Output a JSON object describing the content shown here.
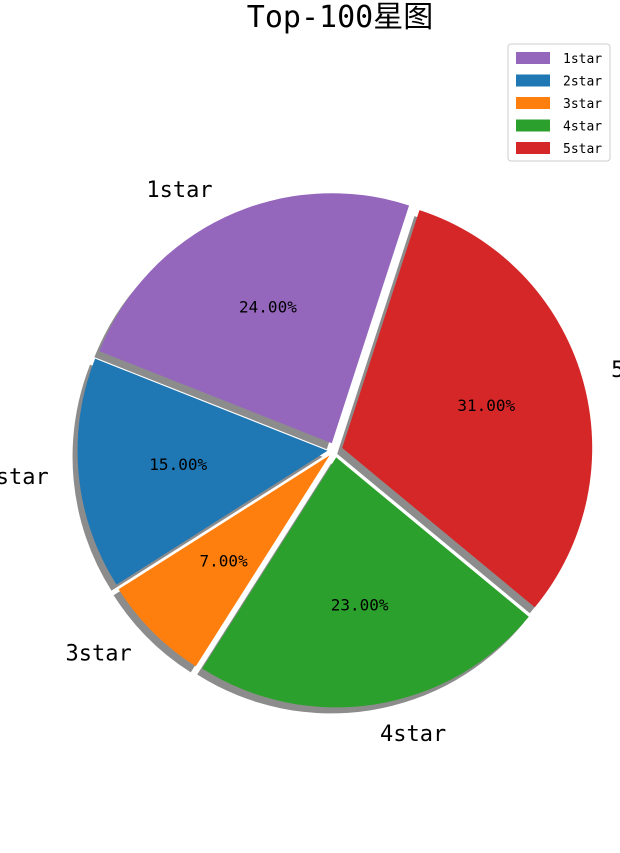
{
  "chart_data": {
    "type": "pie",
    "title": "Top-100星图",
    "categories": [
      "1star",
      "2star",
      "3star",
      "4star",
      "5star"
    ],
    "values": [
      24,
      15,
      7,
      23,
      31
    ],
    "percent_labels": [
      "24.00%",
      "15.00%",
      "7.00%",
      "23.00%",
      "31.00%"
    ],
    "colors": [
      "#9467bd",
      "#1f77b4",
      "#ff7f0e",
      "#2ca02c",
      "#d62728"
    ],
    "exploded": true,
    "shadow": true,
    "legend": {
      "position": "top-right",
      "entries": [
        "1star",
        "2star",
        "3star",
        "4star",
        "5star"
      ]
    }
  }
}
